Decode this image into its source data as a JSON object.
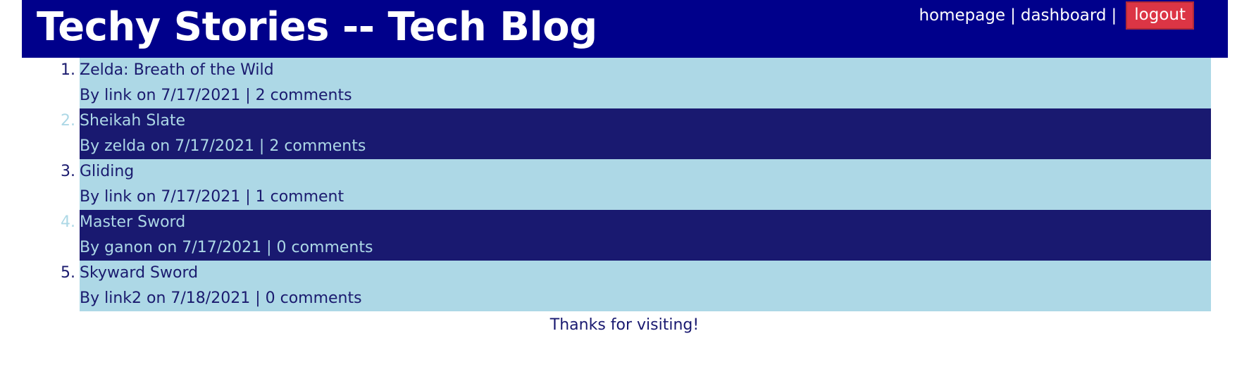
{
  "header": {
    "title": "Techy Stories -- Tech Blog",
    "nav": {
      "homepage": "homepage",
      "separator": "|",
      "dashboard": "dashboard",
      "logout": "logout"
    }
  },
  "posts": [
    {
      "number": "1.",
      "title": "Zelda: Breath of the Wild",
      "meta": "By link on 7/17/2021 | 2 comments"
    },
    {
      "number": "2.",
      "title": "Sheikah Slate",
      "meta": "By zelda on 7/17/2021 | 2 comments"
    },
    {
      "number": "3.",
      "title": "Gliding",
      "meta": "By link on 7/17/2021 | 1 comment"
    },
    {
      "number": "4.",
      "title": "Master Sword",
      "meta": "By ganon on 7/17/2021 | 0 comments"
    },
    {
      "number": "5.",
      "title": "Skyward Sword",
      "meta": "By link2 on 7/18/2021 | 0 comments"
    }
  ],
  "footer": {
    "text": "Thanks for visiting!"
  },
  "colors": {
    "header_bg": "#00008b",
    "row_light": "#add8e6",
    "row_dark": "#191970",
    "logout_bg": "#dc3545"
  }
}
